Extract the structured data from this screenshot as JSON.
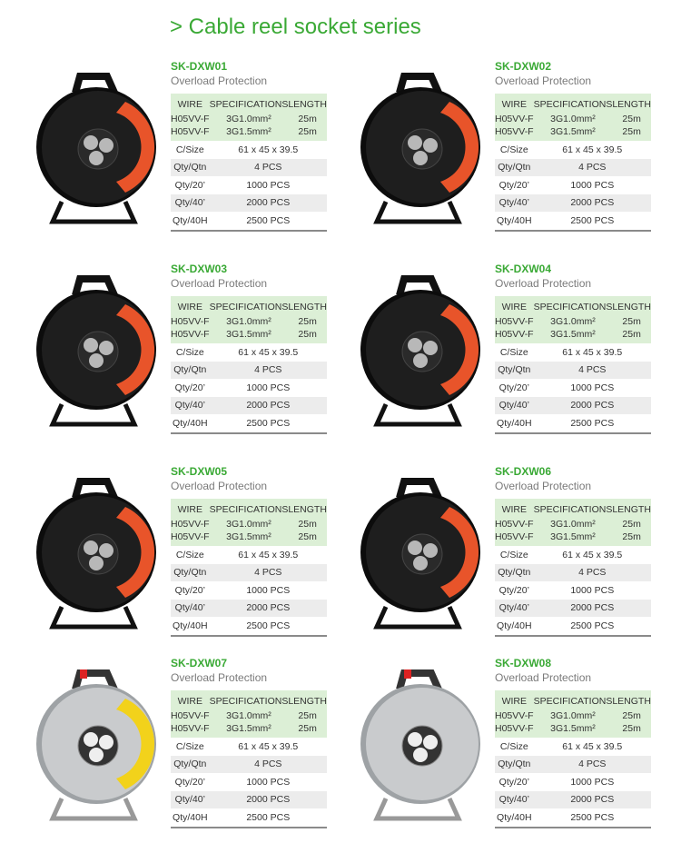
{
  "page_title": "> Cable reel socket series",
  "colors": {
    "accent_green": "#3aa935",
    "header_bg": "#dcefd6",
    "stripe": "#ececec"
  },
  "products": [
    {
      "code": "SK-DXW01",
      "subtitle": "Overload Protection",
      "reel": "black-orange"
    },
    {
      "code": "SK-DXW02",
      "subtitle": "Overload Protection",
      "reel": "black-orange"
    },
    {
      "code": "SK-DXW03",
      "subtitle": "Overload Protection",
      "reel": "black-orange"
    },
    {
      "code": "SK-DXW04",
      "subtitle": "Overload Protection",
      "reel": "black-orange"
    },
    {
      "code": "SK-DXW05",
      "subtitle": "Overload Protection",
      "reel": "black-orange"
    },
    {
      "code": "SK-DXW06",
      "subtitle": "Overload Protection",
      "reel": "black-orange"
    },
    {
      "code": "SK-DXW07",
      "subtitle": "Overload Protection",
      "reel": "silver-yellow"
    },
    {
      "code": "SK-DXW08",
      "subtitle": "Overload Protection",
      "reel": "silver"
    }
  ],
  "table": {
    "headers": [
      "WIRE",
      "SPECIFICATIONS",
      "LENGTH"
    ],
    "wires": [
      [
        "H05VV-F",
        "3G1.0mm²",
        "25m"
      ],
      [
        "H05VV-F",
        "3G1.5mm²",
        "25m"
      ]
    ],
    "rows": [
      [
        "C/Size",
        "61 x 45 x 39.5"
      ],
      [
        "Qty/Qtn",
        "4 PCS"
      ],
      [
        "Qty/20’",
        "1000 PCS"
      ],
      [
        "Qty/40’",
        "2000 PCS"
      ],
      [
        "Qty/40H",
        "2500 PCS"
      ]
    ]
  }
}
